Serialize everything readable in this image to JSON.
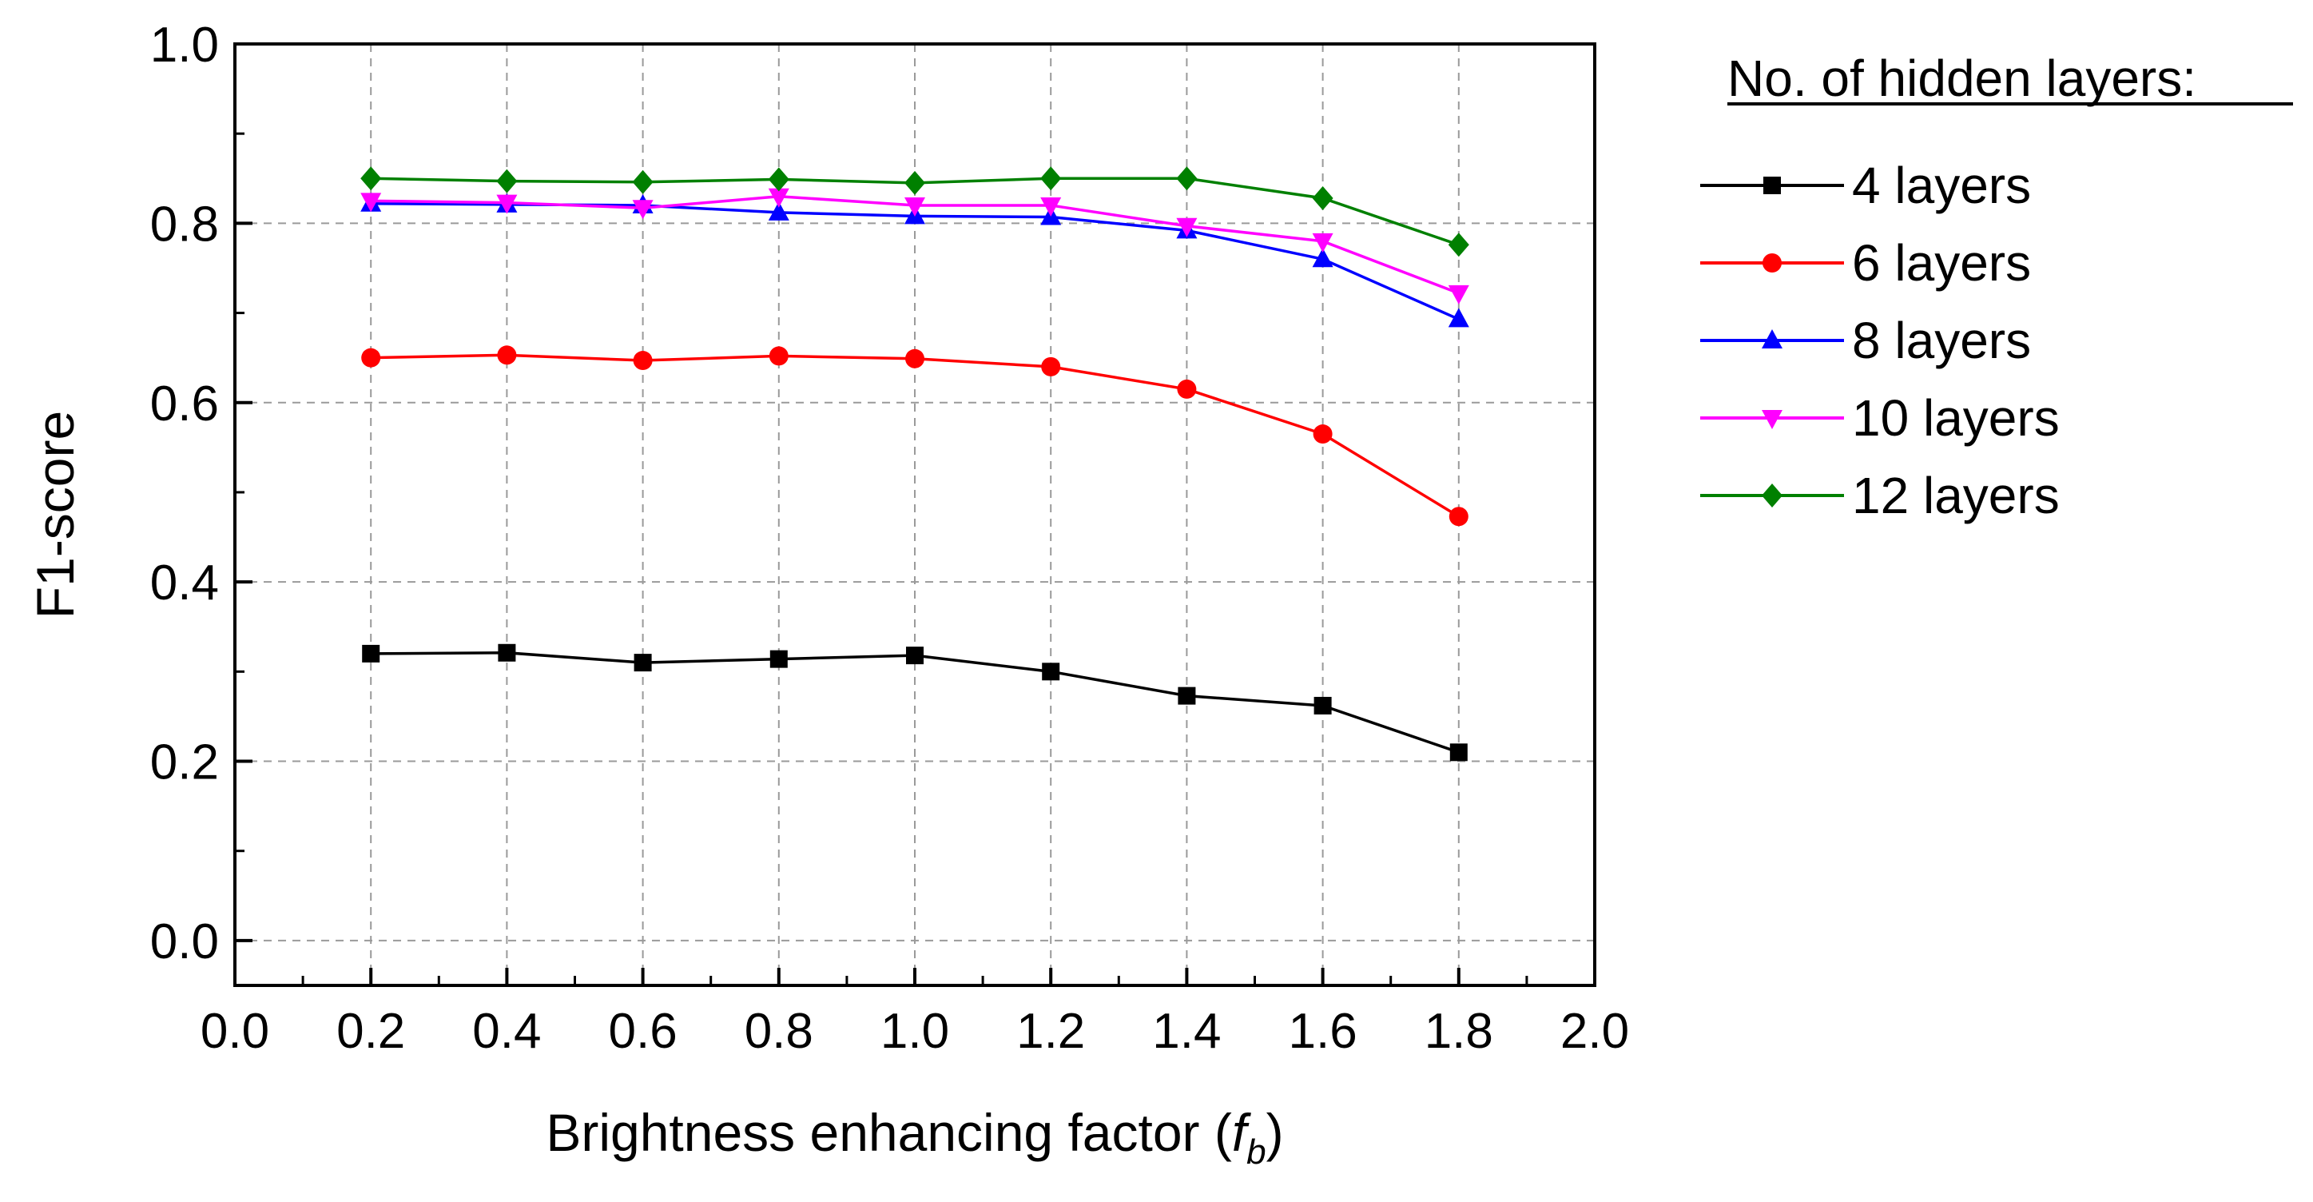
{
  "chart_data": {
    "type": "line",
    "title": "",
    "xlabel": "Brightness enhancing factor (",
    "xlabel_symbol": "f",
    "xlabel_subscript": "b",
    "xlabel_close": ")",
    "ylabel": "F1-score",
    "xlim": [
      0.0,
      2.0
    ],
    "ylim": [
      -0.05,
      1.0
    ],
    "xticks": [
      0.0,
      0.2,
      0.4,
      0.6,
      0.8,
      1.0,
      1.2,
      1.4,
      1.6,
      1.8,
      2.0
    ],
    "xtick_labels": [
      "0.0",
      "0.2",
      "0.4",
      "0.6",
      "0.8",
      "1.0",
      "1.2",
      "1.4",
      "1.6",
      "1.8",
      "2.0"
    ],
    "yticks": [
      0.0,
      0.2,
      0.4,
      0.6,
      0.8,
      1.0
    ],
    "ytick_labels": [
      "0.0",
      "0.2",
      "0.4",
      "0.6",
      "0.8",
      "1.0"
    ],
    "grid": true,
    "legend_title": "No. of hidden layers:",
    "legend_position": "right",
    "x": [
      0.2,
      0.4,
      0.6,
      0.8,
      1.0,
      1.2,
      1.4,
      1.6,
      1.8
    ],
    "series": [
      {
        "name": "4 layers",
        "color": "#000000",
        "marker": "square",
        "values": [
          0.32,
          0.321,
          0.31,
          0.314,
          0.318,
          0.3,
          0.273,
          0.262,
          0.21
        ]
      },
      {
        "name": "6 layers",
        "color": "#ff0000",
        "marker": "circle",
        "values": [
          0.65,
          0.653,
          0.647,
          0.652,
          0.649,
          0.64,
          0.615,
          0.565,
          0.473
        ]
      },
      {
        "name": "8 layers",
        "color": "#0000ff",
        "marker": "triangle-up",
        "values": [
          0.822,
          0.821,
          0.82,
          0.812,
          0.808,
          0.807,
          0.792,
          0.76,
          0.693
        ]
      },
      {
        "name": "10 layers",
        "color": "#ff00ff",
        "marker": "triangle-down",
        "values": [
          0.825,
          0.823,
          0.817,
          0.83,
          0.82,
          0.82,
          0.797,
          0.78,
          0.722
        ]
      },
      {
        "name": "12 layers",
        "color": "#008000",
        "marker": "diamond",
        "values": [
          0.85,
          0.847,
          0.846,
          0.849,
          0.845,
          0.85,
          0.85,
          0.828,
          0.776
        ]
      }
    ]
  }
}
